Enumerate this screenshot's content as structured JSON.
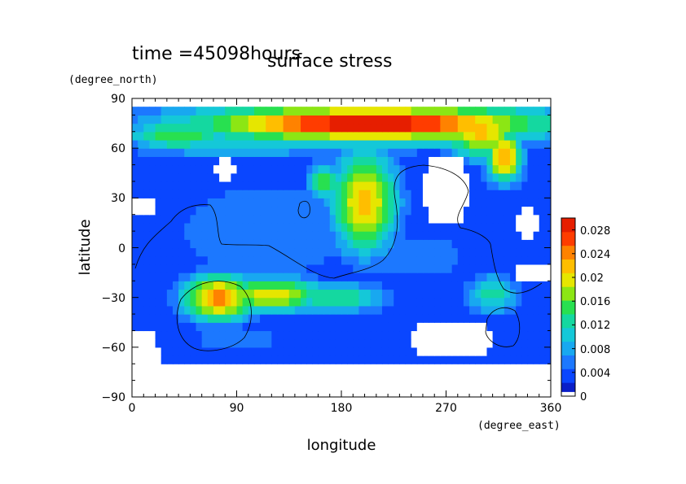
{
  "chart_data": {
    "type": "heatmap",
    "title": "surface stress",
    "subtitle": "time =45098hours",
    "xlabel": "longitude",
    "ylabel": "latitude",
    "xunit": "(degree_east)",
    "yunit": "(degree_north)",
    "xlim": [
      0,
      360
    ],
    "ylim": [
      -90,
      90
    ],
    "xticks": [
      "0",
      "90",
      "180",
      "270",
      "360"
    ],
    "yticks": [
      "90",
      "60",
      "30",
      "0",
      "−30",
      "−60",
      "−90"
    ],
    "colorbar": {
      "range": [
        0,
        0.03
      ],
      "ticks": [
        "0",
        "0.004",
        "0.008",
        "0.012",
        "0.016",
        "0.02",
        "0.024",
        "0.028"
      ],
      "colors": [
        "#ffffff",
        "#0a1ec8",
        "#0a46ff",
        "#1c78ff",
        "#18a8f0",
        "#14c8d8",
        "#14d8a0",
        "#28e050",
        "#8ce614",
        "#e6e600",
        "#ffbe00",
        "#ff8200",
        "#ff3c00",
        "#e61e00"
      ]
    },
    "grid": false,
    "legend": "colorbar-right",
    "regions": [
      {
        "lon": 205,
        "lat": 75,
        "w": 210,
        "h": 16,
        "v": 0.026
      },
      {
        "lon": 205,
        "lat": 75,
        "w": 180,
        "h": 10,
        "v": 0.032
      },
      {
        "lon": 40,
        "lat": 68,
        "w": 60,
        "h": 12,
        "v": 0.016
      },
      {
        "lon": 90,
        "lat": 64,
        "w": 130,
        "h": 14,
        "v": 0.011
      },
      {
        "lon": 320,
        "lat": 55,
        "w": 20,
        "h": 20,
        "v": 0.024
      },
      {
        "lon": 300,
        "lat": 70,
        "w": 40,
        "h": 20,
        "v": 0.022
      },
      {
        "lon": 200,
        "lat": 28,
        "w": 36,
        "h": 40,
        "v": 0.022
      },
      {
        "lon": 165,
        "lat": 40,
        "w": 18,
        "h": 16,
        "v": 0.016
      },
      {
        "lon": 75,
        "lat": -30,
        "w": 40,
        "h": 18,
        "v": 0.024
      },
      {
        "lon": 120,
        "lat": -28,
        "w": 60,
        "h": 14,
        "v": 0.02
      },
      {
        "lon": 175,
        "lat": -30,
        "w": 60,
        "h": 12,
        "v": 0.014
      },
      {
        "lon": 310,
        "lat": -28,
        "w": 30,
        "h": 16,
        "v": 0.013
      },
      {
        "lon": 115,
        "lat": 10,
        "w": 160,
        "h": 60,
        "v": 0.006
      },
      {
        "lon": 240,
        "lat": -5,
        "w": 180,
        "h": 50,
        "v": 0.005
      },
      {
        "lon": 90,
        "lat": -55,
        "w": 150,
        "h": 22,
        "v": 0.005
      },
      {
        "lon": 230,
        "lat": -55,
        "w": 120,
        "h": 16,
        "v": 0.004
      }
    ],
    "zero_regions": [
      {
        "lon": 212,
        "lat": 76,
        "w": 155,
        "h": 9
      },
      {
        "lon": 68,
        "lat": -30,
        "w": 14,
        "h": 10
      },
      {
        "lon": 270,
        "lat": 35,
        "w": 40,
        "h": 45
      },
      {
        "lon": 340,
        "lat": 15,
        "w": 25,
        "h": 18
      },
      {
        "lon": 275,
        "lat": -55,
        "w": 70,
        "h": 25
      },
      {
        "lon": 10,
        "lat": -65,
        "w": 28,
        "h": 30
      },
      {
        "lon": 80,
        "lat": 48,
        "w": 18,
        "h": 12
      },
      {
        "lon": 10,
        "lat": 25,
        "w": 20,
        "h": 12
      },
      {
        "lon": 345,
        "lat": -15,
        "w": 30,
        "h": 12
      }
    ]
  }
}
